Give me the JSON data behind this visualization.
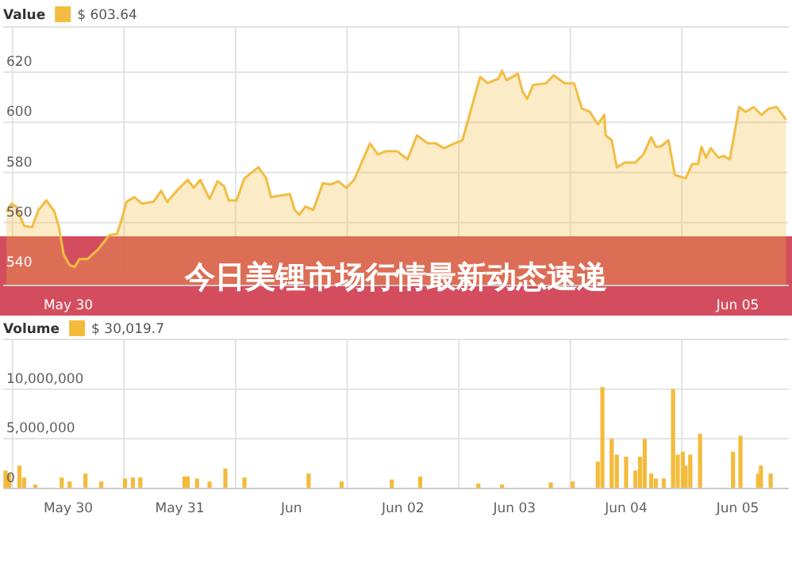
{
  "chart_data": [
    {
      "type": "area",
      "title": "今日美锂市场行情最新动态速递",
      "legend": "top left",
      "grid": true,
      "annotations": [
        "$ 603.64"
      ],
      "xlim": [
        "--05-29T10:00",
        "--06-05T11:00"
      ],
      "ylim": [
        535,
        638
      ],
      "yticks": [
        540,
        560,
        580,
        600,
        620
      ],
      "xticks": [
        {
          "value": "--05-29T12:00",
          "label": null
        },
        {
          "value": "--05-30T12:00",
          "label": null
        },
        {
          "value": "--05-31T12:00",
          "label": null
        },
        {
          "value": "--06-01T12:00",
          "label": null
        },
        {
          "value": "--06-02T12:00",
          "label": null
        },
        {
          "value": "--06-03T12:00",
          "label": null
        },
        {
          "value": "--06-04T12:00",
          "label": null
        },
        {
          "value": "--05-30T00:00",
          "label": "May 30"
        },
        {
          "value": "--06-05T00:00",
          "label": "Jun 05"
        }
      ],
      "x": [
        "--05-29T10:42",
        "--05-29T11:48",
        "--05-29T12:48",
        "--05-29T14:30",
        "--05-29T16:12",
        "--05-29T17:36",
        "--05-29T19:18",
        "--05-29T21:00",
        "--05-29T22:00",
        "--05-29T23:00",
        "--05-30T00:18",
        "--05-30T01:24",
        "--05-30T02:24",
        "--05-30T04:06",
        "--05-30T06:24",
        "--05-30T08:48",
        "--05-30T10:30",
        "--05-30T11:30",
        "--05-30T12:30",
        "--05-30T14:12",
        "--05-30T15:54",
        "--05-30T18:18",
        "--05-30T20:00",
        "--05-30T21:18",
        "--05-30T23:18",
        "--05-31T01:42",
        "--05-31T03:00",
        "--05-31T04:24",
        "--05-31T06:24",
        "--05-31T08:06",
        "--05-31T09:30",
        "--05-31T10:30",
        "--05-31T12:12",
        "--05-31T13:54",
        "--05-31T16:54",
        "--05-31T18:36",
        "--05-31T19:36",
        "--05-31T23:42",
        "--06-01T00:42",
        "--06-01T01:42",
        "--06-01T03:00",
        "--06-01T04:42",
        "--06-01T06:48",
        "--06-01T08:24",
        "--06-01T10:06",
        "--06-01T11:48",
        "--06-01T13:30",
        "--06-01T16:54",
        "--06-01T18:36",
        "--06-01T20:18",
        "--06-01T22:42",
        "--06-02T01:00",
        "--06-02T03:00",
        "--06-02T05:24",
        "--06-02T07:06",
        "--06-02T08:48",
        "--06-02T11:06",
        "--06-02T12:48",
        "--06-02T14:30",
        "--06-02T16:36",
        "--06-02T18:12",
        "--06-02T20:36",
        "--06-02T21:18",
        "--06-02T22:18",
        "--06-03T00:42",
        "--06-03T01:42",
        "--06-03T02:42",
        "--06-03T04:00",
        "--06-03T06:48",
        "--06-03T08:24",
        "--06-03T10:48",
        "--06-03T12:48",
        "--06-03T14:30",
        "--06-03T16:12",
        "--06-03T17:54",
        "--06-03T19:18",
        "--06-03T19:36",
        "--06-03T20:54",
        "--06-03T22:00",
        "--06-03T23:42",
        "--06-04T02:00",
        "--06-04T03:42",
        "--06-04T05:24",
        "--06-04T06:24",
        "--06-04T07:24",
        "--06-04T09:06",
        "--06-04T10:30",
        "--06-04T12:48",
        "--06-04T14:12",
        "--06-04T15:30",
        "--06-04T16:12",
        "--06-04T17:12",
        "--06-04T18:12",
        "--06-04T19:54",
        "--06-04T20:54",
        "--06-04T22:18",
        "--06-05T00:18",
        "--06-05T01:42",
        "--06-05T03:24",
        "--06-05T05:06",
        "--06-05T06:42",
        "--06-05T08:24",
        "--06-05T10:24"
      ],
      "series": [
        {
          "name": "Value",
          "color": "#f2bd42",
          "values": [
            564.5,
            567.6,
            566.4,
            558.8,
            558.2,
            565.1,
            568.9,
            564.5,
            558.2,
            547.5,
            543.1,
            542.4,
            545.5,
            545.5,
            549.3,
            555.0,
            555.6,
            561.3,
            568.3,
            570.2,
            567.6,
            568.3,
            572.7,
            568.3,
            572.7,
            577.1,
            573.9,
            577.1,
            569.5,
            576.5,
            574.6,
            568.9,
            568.9,
            577.7,
            582.1,
            577.7,
            570.2,
            571.4,
            565.1,
            563.2,
            566.4,
            565.1,
            575.8,
            575.2,
            576.5,
            573.9,
            577.1,
            591.6,
            587.2,
            588.5,
            588.5,
            585.3,
            594.8,
            591.6,
            591.6,
            589.7,
            591.6,
            592.9,
            604.2,
            618.1,
            615.6,
            617.5,
            620.6,
            616.8,
            619.4,
            612.4,
            609.3,
            614.9,
            615.6,
            618.7,
            615.6,
            615.6,
            605.5,
            604.2,
            599.2,
            603.0,
            594.8,
            592.9,
            582.1,
            584.0,
            584.0,
            587.2,
            594.1,
            590.3,
            590.3,
            592.9,
            579.0,
            577.7,
            583.4,
            583.4,
            590.3,
            585.9,
            589.7,
            585.9,
            586.6,
            585.3,
            606.1,
            604.2,
            606.1,
            603.0,
            605.5,
            606.1,
            601.1
          ]
        }
      ]
    },
    {
      "type": "bar",
      "legend": "top left",
      "grid": true,
      "annotations": [
        "$ 30,019.7"
      ],
      "xlim": [
        "--05-29T10:00",
        "--06-05T11:00"
      ],
      "ylim": [
        0,
        15000000
      ],
      "yticks": [
        0,
        {
          "value": 5000000,
          "label": "5,000,000"
        },
        {
          "value": 10000000,
          "label": "10,000,000"
        }
      ],
      "xticks": [
        {
          "value": "--05-29T12:00",
          "label": null
        },
        {
          "value": "--05-30T12:00",
          "label": null
        },
        {
          "value": "--05-31T12:00",
          "label": null
        },
        {
          "value": "--06-01T12:00",
          "label": null
        },
        {
          "value": "--06-02T12:00",
          "label": null
        },
        {
          "value": "--06-03T12:00",
          "label": null
        },
        {
          "value": "--06-04T12:00",
          "label": null
        },
        {
          "value": "--05-30T00:00",
          "label": "May 30"
        },
        {
          "value": "--05-31T00:00",
          "label": "May 31"
        },
        {
          "value": "--06-01T00:00",
          "label": "Jun"
        },
        {
          "value": "--06-02T00:00",
          "label": "Jun 02"
        },
        {
          "value": "--06-03T00:00",
          "label": "Jun 03"
        },
        {
          "value": "--06-04T00:00",
          "label": "Jun 04"
        },
        {
          "value": "--06-05T00:00",
          "label": "Jun 05"
        }
      ],
      "x": [
        "--05-29T10:30",
        "--05-29T11:18",
        "--05-29T13:30",
        "--05-29T14:30",
        "--05-29T16:54",
        "--05-29T22:36",
        "--05-30T00:18",
        "--05-30T03:42",
        "--05-30T07:06",
        "--05-30T12:12",
        "--05-30T13:54",
        "--05-30T15:30",
        "--05-31T01:00",
        "--05-31T01:42",
        "--05-31T03:42",
        "--05-31T06:24",
        "--05-31T09:48",
        "--05-31T13:54",
        "--06-01T03:42",
        "--06-01T10:48",
        "--06-01T21:36",
        "--06-02T03:42",
        "--06-02T16:12",
        "--06-02T21:18",
        "--06-03T07:48",
        "--06-03T12:30",
        "--06-03T17:54",
        "--06-03T18:54",
        "--06-03T20:54",
        "--06-03T22:00",
        "--06-04T00:00",
        "--06-04T02:00",
        "--06-04T03:00",
        "--06-04T04:00",
        "--06-04T05:24",
        "--06-04T06:24",
        "--06-04T08:06",
        "--06-04T10:06",
        "--06-04T11:06",
        "--06-04T12:12",
        "--06-04T12:48",
        "--06-04T13:48",
        "--06-04T15:54",
        "--06-04T23:00",
        "--06-05T00:36",
        "--06-05T04:24",
        "--06-05T05:00",
        "--06-05T07:06"
      ],
      "series": [
        {
          "name": "Volume",
          "color": "#f4bb3a",
          "values": [
            1800000,
            1500000,
            2300000,
            1100000,
            400000,
            1100000,
            700000,
            1500000,
            700000,
            1000000,
            1100000,
            1100000,
            1200000,
            1200000,
            1000000,
            700000,
            2000000,
            1100000,
            1500000,
            700000,
            900000,
            1200000,
            500000,
            400000,
            600000,
            700000,
            2700000,
            10200000,
            5000000,
            3400000,
            3200000,
            1800000,
            3200000,
            5000000,
            1500000,
            1000000,
            1000000,
            10000000,
            3400000,
            3700000,
            2300000,
            3400000,
            5500000,
            3700000,
            5300000,
            1500000,
            2300000,
            1500000
          ]
        }
      ]
    }
  ]
}
